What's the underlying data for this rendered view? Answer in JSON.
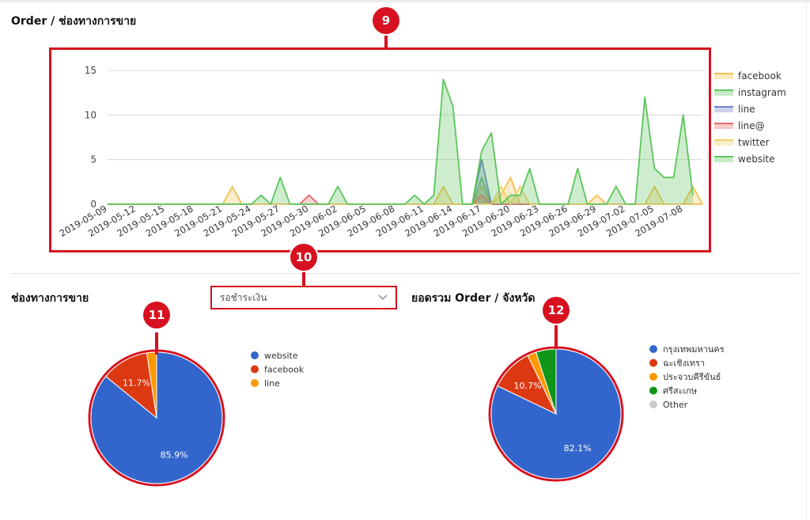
{
  "sections": {
    "line_title": "Order / ช่องทางการขาย",
    "pie1_title": "ช่องทางการขาย",
    "pie2_title": "ยอดรวม Order / จังหวัด"
  },
  "callouts": [
    "9",
    "10",
    "11",
    "12"
  ],
  "dropdown": {
    "value": "รอชำระเงิน"
  },
  "icons": {
    "dropdown": "chevron-down-icon"
  },
  "chart_data": [
    {
      "type": "area",
      "title": "Order / ช่องทางการขาย",
      "ylim": [
        0,
        15
      ],
      "yticks": [
        0,
        5,
        10,
        15
      ],
      "grid": true,
      "legend_position": "right",
      "x_tick_labels": [
        "2019-05-09",
        "2019-05-12",
        "2019-05-15",
        "2019-05-18",
        "2019-05-21",
        "2019-05-24",
        "2019-05-27",
        "2019-05-30",
        "2019-06-02",
        "2019-06-05",
        "2019-06-08",
        "2019-06-11",
        "2019-06-14",
        "2019-06-17",
        "2019-06-20",
        "2019-06-23",
        "2019-06-26",
        "2019-06-29",
        "2019-07-02",
        "2019-07-05",
        "2019-07-08"
      ],
      "series": [
        {
          "name": "facebook",
          "color": "#f2c14e",
          "points": [
            [
              "2019-05-09",
              0
            ],
            [
              "2019-05-21",
              0
            ],
            [
              "2019-05-22",
              2
            ],
            [
              "2019-05-23",
              0
            ],
            [
              "2019-06-12",
              0
            ],
            [
              "2019-06-13",
              2
            ],
            [
              "2019-06-14",
              0
            ],
            [
              "2019-06-16",
              0
            ],
            [
              "2019-06-17",
              2
            ],
            [
              "2019-06-18",
              0
            ],
            [
              "2019-06-19",
              1
            ],
            [
              "2019-06-20",
              3
            ],
            [
              "2019-06-21",
              0
            ],
            [
              "2019-06-28",
              0
            ],
            [
              "2019-06-29",
              1
            ],
            [
              "2019-06-30",
              0
            ],
            [
              "2019-07-04",
              0
            ],
            [
              "2019-07-05",
              2
            ],
            [
              "2019-07-06",
              0
            ],
            [
              "2019-07-08",
              0
            ],
            [
              "2019-07-09",
              2
            ],
            [
              "2019-07-10",
              0
            ]
          ]
        },
        {
          "name": "instagram",
          "color": "#5cc55c",
          "points": [
            [
              "2019-05-09",
              0
            ],
            [
              "2019-06-16",
              0
            ],
            [
              "2019-06-17",
              3
            ],
            [
              "2019-06-18",
              0
            ],
            [
              "2019-07-10",
              0
            ]
          ]
        },
        {
          "name": "line",
          "color": "#6f7fc7",
          "points": [
            [
              "2019-05-09",
              0
            ],
            [
              "2019-06-16",
              0
            ],
            [
              "2019-06-17",
              5
            ],
            [
              "2019-06-18",
              0
            ],
            [
              "2019-07-10",
              0
            ]
          ]
        },
        {
          "name": "line@",
          "color": "#e06b6b",
          "points": [
            [
              "2019-05-09",
              0
            ],
            [
              "2019-05-29",
              0
            ],
            [
              "2019-05-30",
              1
            ],
            [
              "2019-05-31",
              0
            ],
            [
              "2019-06-16",
              0
            ],
            [
              "2019-06-17",
              1
            ],
            [
              "2019-06-18",
              0
            ],
            [
              "2019-07-10",
              0
            ]
          ]
        },
        {
          "name": "twitter",
          "color": "#f4d26a",
          "points": [
            [
              "2019-05-09",
              0
            ],
            [
              "2019-06-18",
              0
            ],
            [
              "2019-06-19",
              2
            ],
            [
              "2019-06-20",
              0
            ],
            [
              "2019-06-21",
              2
            ],
            [
              "2019-06-22",
              0
            ],
            [
              "2019-07-10",
              0
            ]
          ]
        },
        {
          "name": "website",
          "color": "#5cc55c",
          "points": [
            [
              "2019-05-09",
              0
            ],
            [
              "2019-05-24",
              0
            ],
            [
              "2019-05-25",
              1
            ],
            [
              "2019-05-26",
              0
            ],
            [
              "2019-05-27",
              3
            ],
            [
              "2019-05-28",
              0
            ],
            [
              "2019-06-01",
              0
            ],
            [
              "2019-06-02",
              2
            ],
            [
              "2019-06-03",
              0
            ],
            [
              "2019-06-09",
              0
            ],
            [
              "2019-06-10",
              1
            ],
            [
              "2019-06-11",
              0
            ],
            [
              "2019-06-12",
              1
            ],
            [
              "2019-06-13",
              14
            ],
            [
              "2019-06-14",
              11
            ],
            [
              "2019-06-15",
              0
            ],
            [
              "2019-06-16",
              0
            ],
            [
              "2019-06-17",
              6
            ],
            [
              "2019-06-18",
              8
            ],
            [
              "2019-06-19",
              0
            ],
            [
              "2019-06-20",
              1
            ],
            [
              "2019-06-21",
              1
            ],
            [
              "2019-06-22",
              4
            ],
            [
              "2019-06-23",
              0
            ],
            [
              "2019-06-26",
              0
            ],
            [
              "2019-06-27",
              4
            ],
            [
              "2019-06-28",
              0
            ],
            [
              "2019-06-30",
              0
            ],
            [
              "2019-07-01",
              2
            ],
            [
              "2019-07-02",
              0
            ],
            [
              "2019-07-03",
              0
            ],
            [
              "2019-07-04",
              12
            ],
            [
              "2019-07-05",
              4
            ],
            [
              "2019-07-06",
              3
            ],
            [
              "2019-07-07",
              3
            ],
            [
              "2019-07-08",
              10
            ],
            [
              "2019-07-09",
              1
            ]
          ]
        }
      ]
    },
    {
      "type": "pie",
      "title": "ช่องทางการขาย",
      "legend_position": "right",
      "slices": [
        {
          "label": "website",
          "value": 85.9,
          "color": "#3366cc",
          "data_label": "85.9%"
        },
        {
          "label": "facebook",
          "value": 11.7,
          "color": "#dc3912",
          "data_label": "11.7%"
        },
        {
          "label": "line",
          "value": 2.4,
          "color": "#ff9900",
          "data_label": ""
        }
      ]
    },
    {
      "type": "pie",
      "title": "ยอดรวม Order / จังหวัด",
      "legend_position": "right",
      "slices": [
        {
          "label": "กรุงเทพมหานคร",
          "value": 82.1,
          "color": "#3366cc",
          "data_label": "82.1%"
        },
        {
          "label": "ฉะเชิงเทรา",
          "value": 10.7,
          "color": "#dc3912",
          "data_label": "10.7%"
        },
        {
          "label": "ประจวบคีรีขันธ์",
          "value": 2.2,
          "color": "#ff9900",
          "data_label": ""
        },
        {
          "label": "ศรีสะเกษ",
          "value": 5.0,
          "color": "#109618",
          "data_label": ""
        },
        {
          "label": "Other",
          "value": 0,
          "color": "#cccccc",
          "data_label": ""
        }
      ]
    }
  ]
}
